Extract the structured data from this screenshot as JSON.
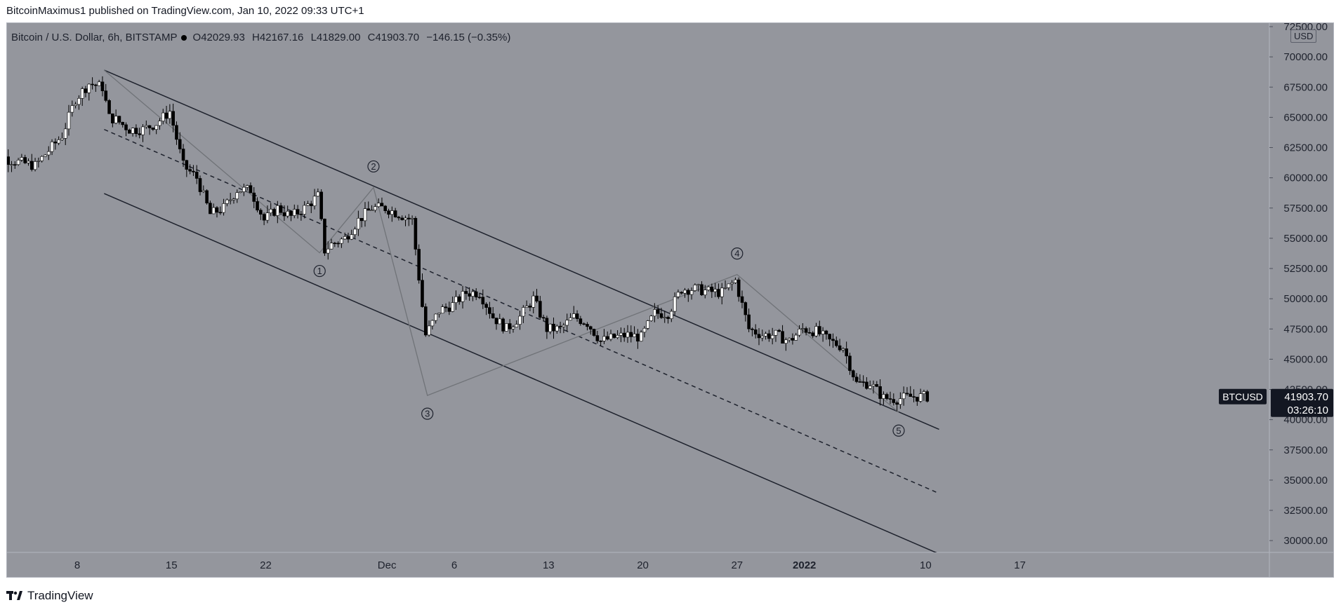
{
  "header": {
    "publisher": "BitcoinMaximus1 published on TradingView.com, Jan 10, 2022 09:33 UTC+1"
  },
  "legend": {
    "symbol": "Bitcoin / U.S. Dollar, 6h, BITSTAMP",
    "open_key": "O",
    "open": "42029.93",
    "high_key": "H",
    "high": "42167.16",
    "low_key": "L",
    "low": "41829.00",
    "close_key": "C",
    "close": "41903.70",
    "change": "−146.15 (−0.35%)"
  },
  "price_axis": {
    "currency": "USD",
    "ticks": [
      "72500.00",
      "70000.00",
      "67500.00",
      "65000.00",
      "62500.00",
      "60000.00",
      "57500.00",
      "55000.00",
      "52500.00",
      "50000.00",
      "47500.00",
      "45000.00",
      "42500.00",
      "40000.00",
      "37500.00",
      "35000.00",
      "32500.00",
      "30000.00"
    ],
    "last_label_symbol": "BTCUSD",
    "last_price": "41903.70",
    "countdown": "03:26:10"
  },
  "time_axis": {
    "ticks": [
      "8",
      "15",
      "22",
      "Dec",
      "6",
      "13",
      "20",
      "27",
      "2022",
      "10",
      "17"
    ]
  },
  "footer": {
    "brand": "TradingView"
  },
  "colors": {
    "background": "#94969d",
    "up_candle": "#ffffff",
    "down_candle": "#000000",
    "channel": "#1e222d",
    "wave_path": "#707378"
  },
  "chart_data": {
    "type": "candlestick",
    "title": "Bitcoin / U.S. Dollar, 6h, BITSTAMP",
    "interval": "6h",
    "ylim": [
      29000,
      73000
    ],
    "y_ticks": [
      72500,
      70000,
      67500,
      65000,
      62500,
      60000,
      57500,
      55000,
      52500,
      50000,
      47500,
      45000,
      42500,
      40000,
      37500,
      35000,
      32500,
      30000
    ],
    "x_ticks": [
      {
        "label": "8",
        "date": "2021-11-08"
      },
      {
        "label": "15",
        "date": "2021-11-15"
      },
      {
        "label": "22",
        "date": "2021-11-22"
      },
      {
        "label": "Dec",
        "date": "2021-12-01"
      },
      {
        "label": "6",
        "date": "2021-12-06"
      },
      {
        "label": "13",
        "date": "2021-12-13"
      },
      {
        "label": "20",
        "date": "2021-12-20"
      },
      {
        "label": "27",
        "date": "2021-12-27"
      },
      {
        "label": "2022",
        "date": "2022-01-01"
      },
      {
        "label": "10",
        "date": "2022-01-10"
      },
      {
        "label": "17",
        "date": "2022-01-17"
      }
    ],
    "price_path": [
      {
        "date": "2021-11-01",
        "price": 63000
      },
      {
        "date": "2021-11-03",
        "price": 61500
      },
      {
        "date": "2021-11-05",
        "price": 61000
      },
      {
        "date": "2021-11-07",
        "price": 63500
      },
      {
        "date": "2021-11-08",
        "price": 66500
      },
      {
        "date": "2021-11-09",
        "price": 67800
      },
      {
        "date": "2021-11-10",
        "price": 67500
      },
      {
        "date": "2021-11-10.5",
        "price": 65000
      },
      {
        "date": "2021-11-11",
        "price": 64800
      },
      {
        "date": "2021-11-12",
        "price": 64000
      },
      {
        "date": "2021-11-13",
        "price": 64000
      },
      {
        "date": "2021-11-14",
        "price": 64500
      },
      {
        "date": "2021-11-15",
        "price": 65500
      },
      {
        "date": "2021-11-16",
        "price": 61000
      },
      {
        "date": "2021-11-17",
        "price": 60000
      },
      {
        "date": "2021-11-18",
        "price": 57000
      },
      {
        "date": "2021-11-19",
        "price": 57500
      },
      {
        "date": "2021-11-20",
        "price": 59000
      },
      {
        "date": "2021-11-21",
        "price": 59000
      },
      {
        "date": "2021-11-22",
        "price": 56500
      },
      {
        "date": "2021-11-23",
        "price": 57500
      },
      {
        "date": "2021-11-24",
        "price": 56800
      },
      {
        "date": "2021-11-25",
        "price": 57500
      },
      {
        "date": "2021-11-26",
        "price": 58500
      },
      {
        "date": "2021-11-26.5",
        "price": 54000
      },
      {
        "date": "2021-11-27",
        "price": 54500
      },
      {
        "date": "2021-11-28",
        "price": 55000
      },
      {
        "date": "2021-11-29",
        "price": 56500
      },
      {
        "date": "2021-11-30",
        "price": 57500
      },
      {
        "date": "2021-12-01",
        "price": 57500
      },
      {
        "date": "2021-12-02",
        "price": 57000
      },
      {
        "date": "2021-12-03",
        "price": 56500
      },
      {
        "date": "2021-12-04",
        "price": 47000
      },
      {
        "date": "2021-12-05",
        "price": 49000
      },
      {
        "date": "2021-12-06",
        "price": 49500
      },
      {
        "date": "2021-12-07",
        "price": 50500
      },
      {
        "date": "2021-12-08",
        "price": 50500
      },
      {
        "date": "2021-12-09",
        "price": 48500
      },
      {
        "date": "2021-12-10",
        "price": 47500
      },
      {
        "date": "2021-12-11",
        "price": 48500
      },
      {
        "date": "2021-12-12",
        "price": 50000
      },
      {
        "date": "2021-12-13",
        "price": 47500
      },
      {
        "date": "2021-12-14",
        "price": 47500
      },
      {
        "date": "2021-12-15",
        "price": 48500
      },
      {
        "date": "2021-12-16",
        "price": 48000
      },
      {
        "date": "2021-12-17",
        "price": 46500
      },
      {
        "date": "2021-12-18",
        "price": 46800
      },
      {
        "date": "2021-12-19",
        "price": 47000
      },
      {
        "date": "2021-12-20",
        "price": 46800
      },
      {
        "date": "2021-12-21",
        "price": 48800
      },
      {
        "date": "2021-12-22",
        "price": 48800
      },
      {
        "date": "2021-12-23",
        "price": 50800
      },
      {
        "date": "2021-12-24",
        "price": 50800
      },
      {
        "date": "2021-12-25",
        "price": 50600
      },
      {
        "date": "2021-12-26",
        "price": 50500
      },
      {
        "date": "2021-12-27",
        "price": 51500
      },
      {
        "date": "2021-12-28",
        "price": 47500
      },
      {
        "date": "2021-12-29",
        "price": 47000
      },
      {
        "date": "2021-12-30",
        "price": 47000
      },
      {
        "date": "2021-12-31",
        "price": 46500
      },
      {
        "date": "2022-01-01",
        "price": 47500
      },
      {
        "date": "2022-01-02",
        "price": 47300
      },
      {
        "date": "2022-01-03",
        "price": 46500
      },
      {
        "date": "2022-01-04",
        "price": 46000
      },
      {
        "date": "2022-01-05",
        "price": 43000
      },
      {
        "date": "2022-01-06",
        "price": 43000
      },
      {
        "date": "2022-01-07",
        "price": 41800
      },
      {
        "date": "2022-01-08",
        "price": 41700
      },
      {
        "date": "2022-01-09",
        "price": 41900
      },
      {
        "date": "2022-01-10",
        "price": 41903.7
      }
    ],
    "channel": {
      "upper": [
        {
          "date": "2021-11-10",
          "price": 68900
        },
        {
          "date": "2022-01-11",
          "price": 39200
        }
      ],
      "middle": [
        {
          "date": "2021-11-10",
          "price": 64000
        },
        {
          "date": "2022-01-11",
          "price": 33900
        }
      ],
      "lower": [
        {
          "date": "2021-11-10",
          "price": 58700
        },
        {
          "date": "2022-01-11",
          "price": 28900
        }
      ]
    },
    "waves": [
      {
        "label": "1",
        "date": "2021-11-26",
        "price": 53800
      },
      {
        "label": "2",
        "date": "2021-11-30",
        "price": 59200
      },
      {
        "label": "3",
        "date": "2021-12-04",
        "price": 42000
      },
      {
        "label": "4",
        "date": "2021-12-27",
        "price": 52000
      },
      {
        "label": "5",
        "date": "2022-01-08",
        "price": 40600
      }
    ],
    "wave_start": {
      "date": "2021-11-10",
      "price": 68900
    }
  }
}
